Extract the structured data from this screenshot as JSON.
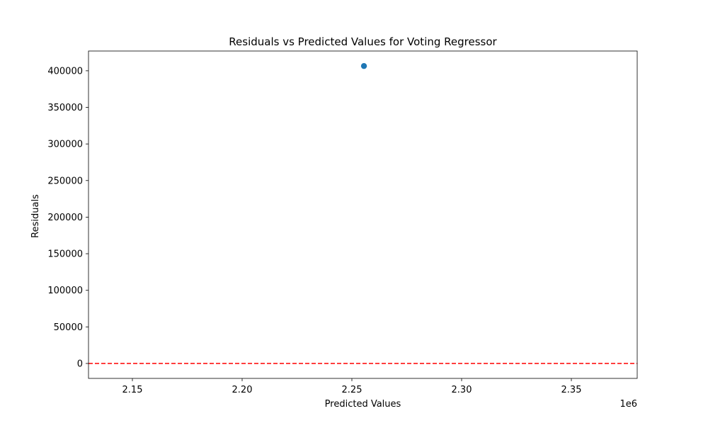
{
  "chart_data": {
    "type": "scatter",
    "title": "Residuals vs Predicted Values for Voting Regressor",
    "xlabel": "Predicted Values",
    "ylabel": "Residuals",
    "x_offset_label": "1e6",
    "xlim": [
      2130000,
      2380000
    ],
    "ylim": [
      -20400,
      427000
    ],
    "xticks": [
      2150000,
      2200000,
      2250000,
      2300000,
      2350000
    ],
    "xtick_labels": [
      "2.15",
      "2.20",
      "2.25",
      "2.30",
      "2.35"
    ],
    "yticks": [
      0,
      50000,
      100000,
      150000,
      200000,
      250000,
      300000,
      350000,
      400000
    ],
    "ytick_labels": [
      "0",
      "50000",
      "100000",
      "150000",
      "200000",
      "250000",
      "300000",
      "350000",
      "400000"
    ],
    "grid": false,
    "series": [
      {
        "color": "#1f77b4",
        "points": [
          {
            "x": 2255500,
            "y": 406500
          }
        ]
      }
    ],
    "reference_line": {
      "axis": "y",
      "value": 0,
      "color": "#ff0000",
      "style": "dashed"
    }
  }
}
